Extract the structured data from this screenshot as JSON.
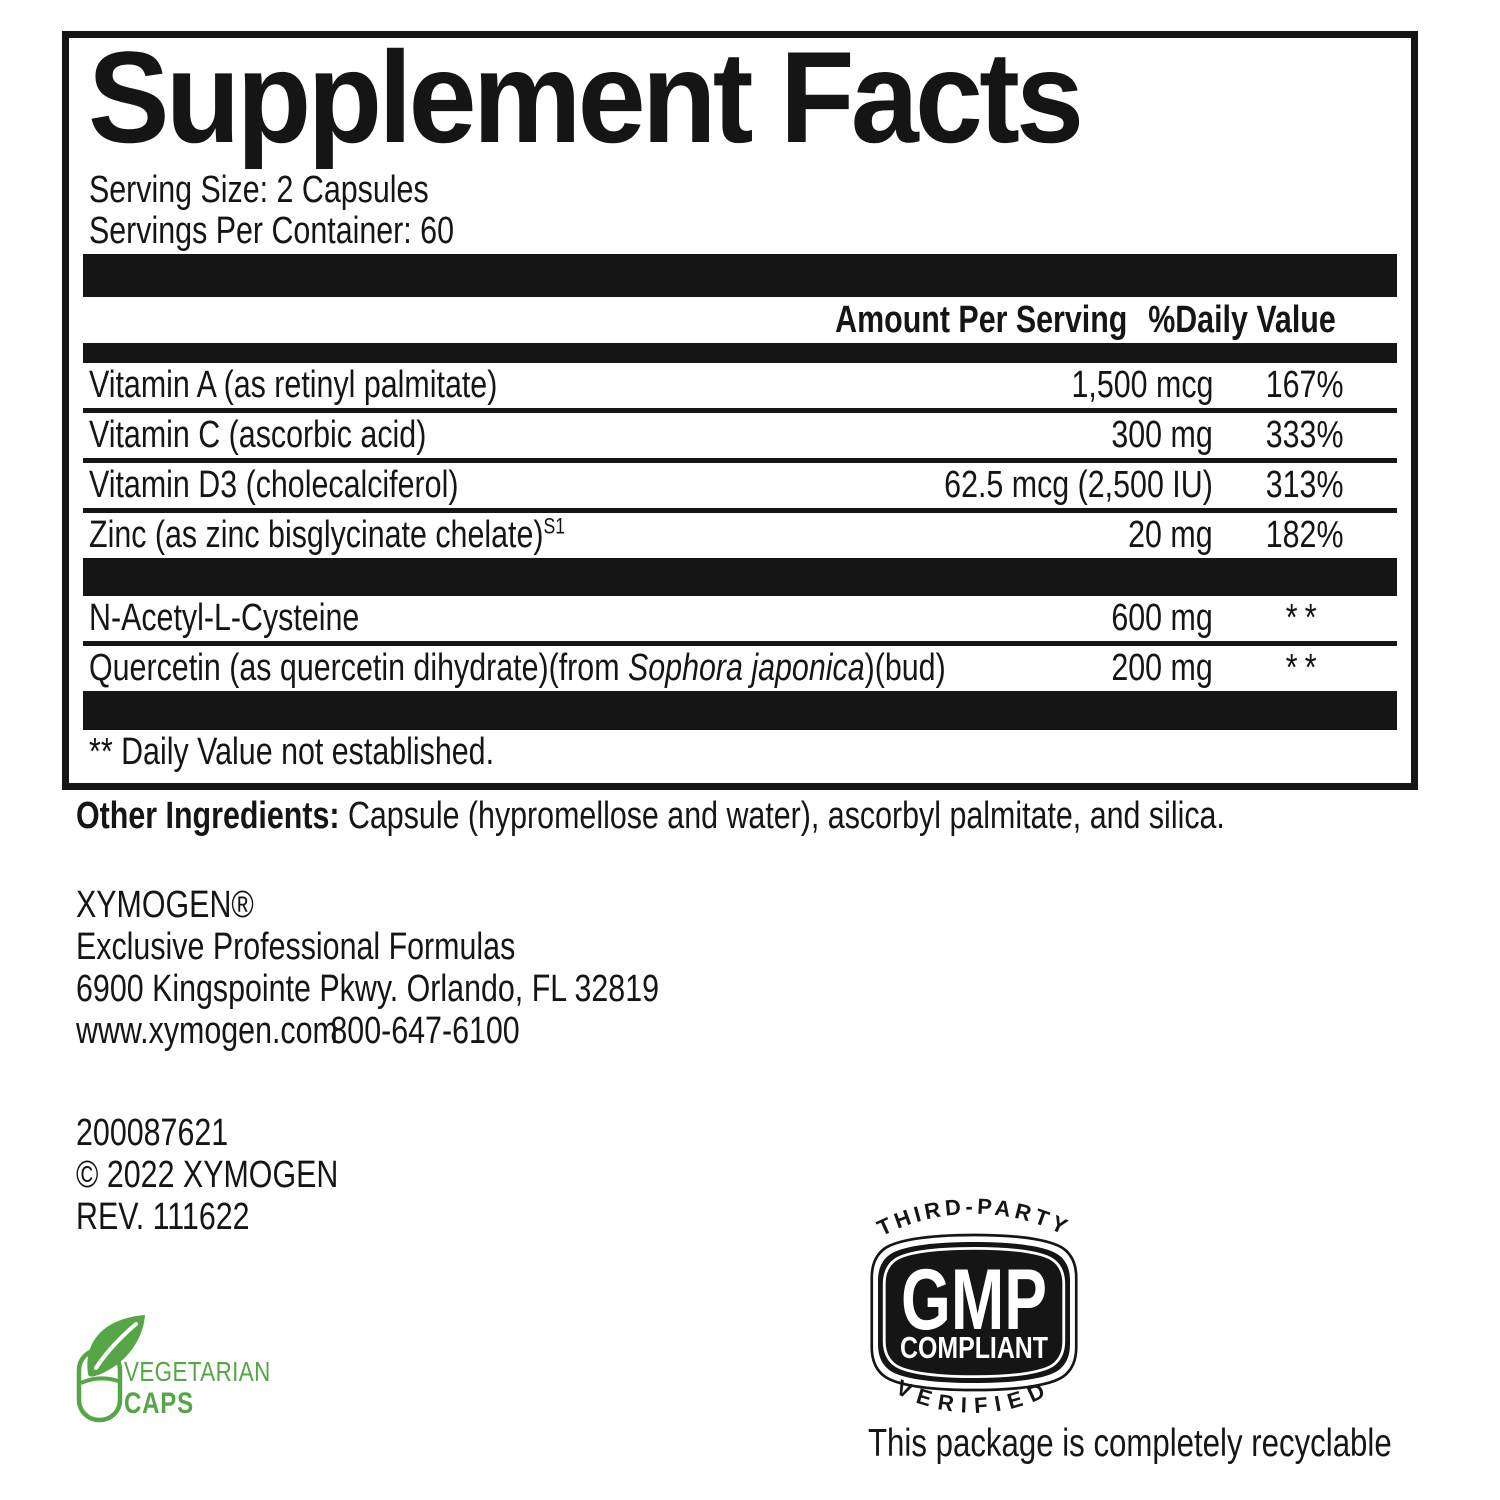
{
  "colors": {
    "ink": "#151515",
    "green": "#56A546",
    "white": "#FFFFFF"
  },
  "panel": {
    "title": "Supplement Facts",
    "serving_size": "Serving Size: 2 Capsules",
    "servings_per_container": "Servings Per Container: 60",
    "columns": {
      "amount": "Amount Per Serving",
      "daily_value": "%Daily Value"
    },
    "rows": [
      {
        "group": 1,
        "parts": [
          {
            "t": "Vitamin A (as retinyl palmitate)"
          }
        ],
        "amount": "1,500 mcg",
        "dv": "167%"
      },
      {
        "group": 1,
        "parts": [
          {
            "t": "Vitamin C (ascorbic acid)"
          }
        ],
        "amount": "300 mg",
        "dv": "333%"
      },
      {
        "group": 1,
        "parts": [
          {
            "t": "Vitamin D3 (cholecalciferol)"
          }
        ],
        "amount": "62.5 mcg (2,500 IU)",
        "dv": "313%"
      },
      {
        "group": 1,
        "parts": [
          {
            "t": "Zinc (as zinc bisglycinate chelate)"
          },
          {
            "t": "S1",
            "sup": true
          }
        ],
        "amount": "20 mg",
        "dv": "182%"
      },
      {
        "group": 2,
        "parts": [
          {
            "t": "N-Acetyl-L-Cysteine"
          }
        ],
        "amount": "600 mg",
        "dv": "**"
      },
      {
        "group": 2,
        "parts": [
          {
            "t": "Quercetin (as quercetin dihydrate)(from "
          },
          {
            "t": "Sophora japonica",
            "italic": true
          },
          {
            "t": ")(bud)"
          }
        ],
        "amount": "200 mg",
        "dv": "**"
      }
    ],
    "footnote": "** Daily Value not established."
  },
  "other_ingredients": {
    "label": "Other Ingredients: ",
    "text": "Capsule (hypromellose and water), ascorbyl palmitate, and silica."
  },
  "company": {
    "name": "XYMOGEN®",
    "tagline": "Exclusive Professional Formulas",
    "address": "6900 Kingspointe Pkwy. Orlando, FL 32819",
    "website": "www.xymogen.com",
    "phone": "800-647-6100"
  },
  "codes": {
    "item_number": "200087621",
    "copyright": "© 2022 XYMOGEN",
    "revision": "REV. 111622"
  },
  "badges": {
    "vegetarian": {
      "line1": "VEGETARIAN",
      "line2": "CAPS",
      "icon": "capsule-leaf-icon"
    },
    "gmp": {
      "top": "THIRD-PARTY",
      "center": "GMP",
      "sub": "COMPLIANT",
      "bottom": "VERIFIED"
    },
    "recyclable_text": "This package is completely recyclable",
    "recycle_icon": {
      "name": "recycle-icon",
      "glyph": "♻"
    }
  }
}
